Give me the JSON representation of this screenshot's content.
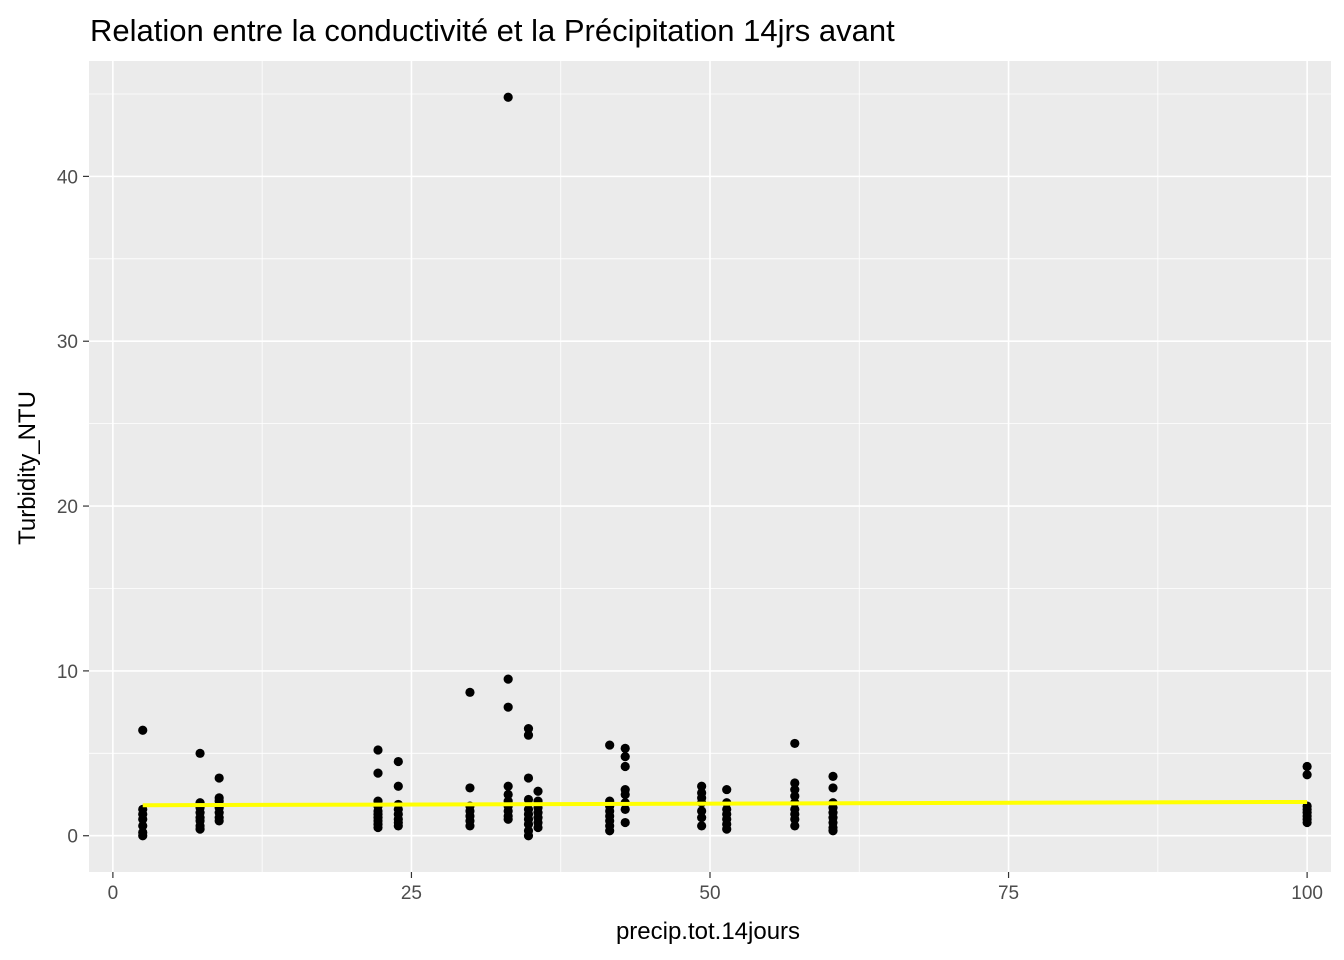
{
  "chart_data": {
    "type": "scatter",
    "title": "Relation entre la conductivité et la Précipitation 14jrs avant",
    "xlabel": "precip.tot.14jours",
    "ylabel": "Turbidity_NTU",
    "xlim": [
      -2,
      102
    ],
    "ylim": [
      -2.2,
      47
    ],
    "x_ticks": [
      0,
      25,
      50,
      75,
      100
    ],
    "x_tick_labels": [
      "0",
      "25",
      "50",
      "75",
      "100"
    ],
    "y_ticks": [
      0,
      10,
      20,
      30,
      40
    ],
    "y_tick_labels": [
      "0",
      "10",
      "20",
      "30",
      "40"
    ],
    "grid": true,
    "legend": "none",
    "colors": {
      "panel": "#ebebeb",
      "grid": "#ffffff",
      "points": "#000000",
      "smooth": "#ffff00"
    },
    "points": [
      {
        "x": 2.5,
        "y": 6.4
      },
      {
        "x": 2.5,
        "y": 1.6
      },
      {
        "x": 2.5,
        "y": 1.3
      },
      {
        "x": 2.5,
        "y": 1.0
      },
      {
        "x": 2.5,
        "y": 0.6
      },
      {
        "x": 2.5,
        "y": 0.2
      },
      {
        "x": 2.5,
        "y": 0.0
      },
      {
        "x": 7.3,
        "y": 5.0
      },
      {
        "x": 7.3,
        "y": 2.0
      },
      {
        "x": 7.3,
        "y": 1.7
      },
      {
        "x": 7.3,
        "y": 1.4
      },
      {
        "x": 7.3,
        "y": 1.1
      },
      {
        "x": 7.3,
        "y": 0.9
      },
      {
        "x": 7.3,
        "y": 0.6
      },
      {
        "x": 7.3,
        "y": 0.4
      },
      {
        "x": 8.9,
        "y": 3.5
      },
      {
        "x": 8.9,
        "y": 2.3
      },
      {
        "x": 8.9,
        "y": 2.1
      },
      {
        "x": 8.9,
        "y": 1.7
      },
      {
        "x": 8.9,
        "y": 1.4
      },
      {
        "x": 8.9,
        "y": 1.1
      },
      {
        "x": 8.9,
        "y": 0.9
      },
      {
        "x": 22.2,
        "y": 5.2
      },
      {
        "x": 22.2,
        "y": 3.8
      },
      {
        "x": 22.2,
        "y": 2.1
      },
      {
        "x": 22.2,
        "y": 1.8
      },
      {
        "x": 22.2,
        "y": 1.5
      },
      {
        "x": 22.2,
        "y": 1.3
      },
      {
        "x": 22.2,
        "y": 1.1
      },
      {
        "x": 22.2,
        "y": 0.9
      },
      {
        "x": 22.2,
        "y": 0.7
      },
      {
        "x": 22.2,
        "y": 0.5
      },
      {
        "x": 23.9,
        "y": 4.5
      },
      {
        "x": 23.9,
        "y": 3.0
      },
      {
        "x": 23.9,
        "y": 1.9
      },
      {
        "x": 23.9,
        "y": 1.6
      },
      {
        "x": 23.9,
        "y": 1.3
      },
      {
        "x": 23.9,
        "y": 1.0
      },
      {
        "x": 23.9,
        "y": 0.8
      },
      {
        "x": 23.9,
        "y": 0.6
      },
      {
        "x": 29.9,
        "y": 8.7
      },
      {
        "x": 29.9,
        "y": 2.9
      },
      {
        "x": 29.9,
        "y": 1.8
      },
      {
        "x": 29.9,
        "y": 1.5
      },
      {
        "x": 29.9,
        "y": 1.2
      },
      {
        "x": 29.9,
        "y": 0.9
      },
      {
        "x": 29.9,
        "y": 0.6
      },
      {
        "x": 33.1,
        "y": 44.8
      },
      {
        "x": 33.1,
        "y": 9.5
      },
      {
        "x": 33.1,
        "y": 7.8
      },
      {
        "x": 33.1,
        "y": 3.0
      },
      {
        "x": 33.1,
        "y": 2.5
      },
      {
        "x": 33.1,
        "y": 2.1
      },
      {
        "x": 33.1,
        "y": 1.8
      },
      {
        "x": 33.1,
        "y": 1.5
      },
      {
        "x": 33.1,
        "y": 1.2
      },
      {
        "x": 33.1,
        "y": 1.0
      },
      {
        "x": 34.8,
        "y": 6.5
      },
      {
        "x": 34.8,
        "y": 6.1
      },
      {
        "x": 34.8,
        "y": 3.5
      },
      {
        "x": 34.8,
        "y": 2.2
      },
      {
        "x": 34.8,
        "y": 1.6
      },
      {
        "x": 34.8,
        "y": 1.3
      },
      {
        "x": 34.8,
        "y": 1.0
      },
      {
        "x": 34.8,
        "y": 0.7
      },
      {
        "x": 34.8,
        "y": 0.3
      },
      {
        "x": 34.8,
        "y": 0.0
      },
      {
        "x": 35.6,
        "y": 2.7
      },
      {
        "x": 35.6,
        "y": 2.1
      },
      {
        "x": 35.6,
        "y": 1.7
      },
      {
        "x": 35.6,
        "y": 1.4
      },
      {
        "x": 35.6,
        "y": 1.1
      },
      {
        "x": 35.6,
        "y": 0.8
      },
      {
        "x": 35.6,
        "y": 0.5
      },
      {
        "x": 41.6,
        "y": 5.5
      },
      {
        "x": 41.6,
        "y": 2.1
      },
      {
        "x": 41.6,
        "y": 1.8
      },
      {
        "x": 41.6,
        "y": 1.5
      },
      {
        "x": 41.6,
        "y": 1.2
      },
      {
        "x": 41.6,
        "y": 0.9
      },
      {
        "x": 41.6,
        "y": 0.6
      },
      {
        "x": 41.6,
        "y": 0.3
      },
      {
        "x": 42.9,
        "y": 5.3
      },
      {
        "x": 42.9,
        "y": 4.8
      },
      {
        "x": 42.9,
        "y": 4.2
      },
      {
        "x": 42.9,
        "y": 2.8
      },
      {
        "x": 42.9,
        "y": 2.5
      },
      {
        "x": 42.9,
        "y": 2.0
      },
      {
        "x": 42.9,
        "y": 1.6
      },
      {
        "x": 42.9,
        "y": 0.8
      },
      {
        "x": 49.3,
        "y": 3.0
      },
      {
        "x": 49.3,
        "y": 2.6
      },
      {
        "x": 49.3,
        "y": 2.3
      },
      {
        "x": 49.3,
        "y": 2.0
      },
      {
        "x": 49.3,
        "y": 1.5
      },
      {
        "x": 49.3,
        "y": 1.1
      },
      {
        "x": 49.3,
        "y": 0.6
      },
      {
        "x": 51.4,
        "y": 2.8
      },
      {
        "x": 51.4,
        "y": 2.0
      },
      {
        "x": 51.4,
        "y": 1.6
      },
      {
        "x": 51.4,
        "y": 1.3
      },
      {
        "x": 51.4,
        "y": 1.0
      },
      {
        "x": 51.4,
        "y": 0.7
      },
      {
        "x": 51.4,
        "y": 0.4
      },
      {
        "x": 57.1,
        "y": 5.6
      },
      {
        "x": 57.1,
        "y": 3.2
      },
      {
        "x": 57.1,
        "y": 2.8
      },
      {
        "x": 57.1,
        "y": 2.4
      },
      {
        "x": 57.1,
        "y": 2.0
      },
      {
        "x": 57.1,
        "y": 1.6
      },
      {
        "x": 57.1,
        "y": 1.3
      },
      {
        "x": 57.1,
        "y": 1.0
      },
      {
        "x": 57.1,
        "y": 0.6
      },
      {
        "x": 60.3,
        "y": 3.6
      },
      {
        "x": 60.3,
        "y": 2.9
      },
      {
        "x": 60.3,
        "y": 2.0
      },
      {
        "x": 60.3,
        "y": 1.7
      },
      {
        "x": 60.3,
        "y": 1.4
      },
      {
        "x": 60.3,
        "y": 1.1
      },
      {
        "x": 60.3,
        "y": 0.8
      },
      {
        "x": 60.3,
        "y": 0.5
      },
      {
        "x": 60.3,
        "y": 0.3
      },
      {
        "x": 100,
        "y": 4.2
      },
      {
        "x": 100,
        "y": 3.7
      },
      {
        "x": 100,
        "y": 1.8
      },
      {
        "x": 100,
        "y": 1.6
      },
      {
        "x": 100,
        "y": 1.4
      },
      {
        "x": 100,
        "y": 1.2
      },
      {
        "x": 100,
        "y": 1.0
      },
      {
        "x": 100,
        "y": 0.8
      }
    ],
    "smooth_line": {
      "x": [
        2.5,
        100
      ],
      "y": [
        1.85,
        2.05
      ]
    }
  }
}
